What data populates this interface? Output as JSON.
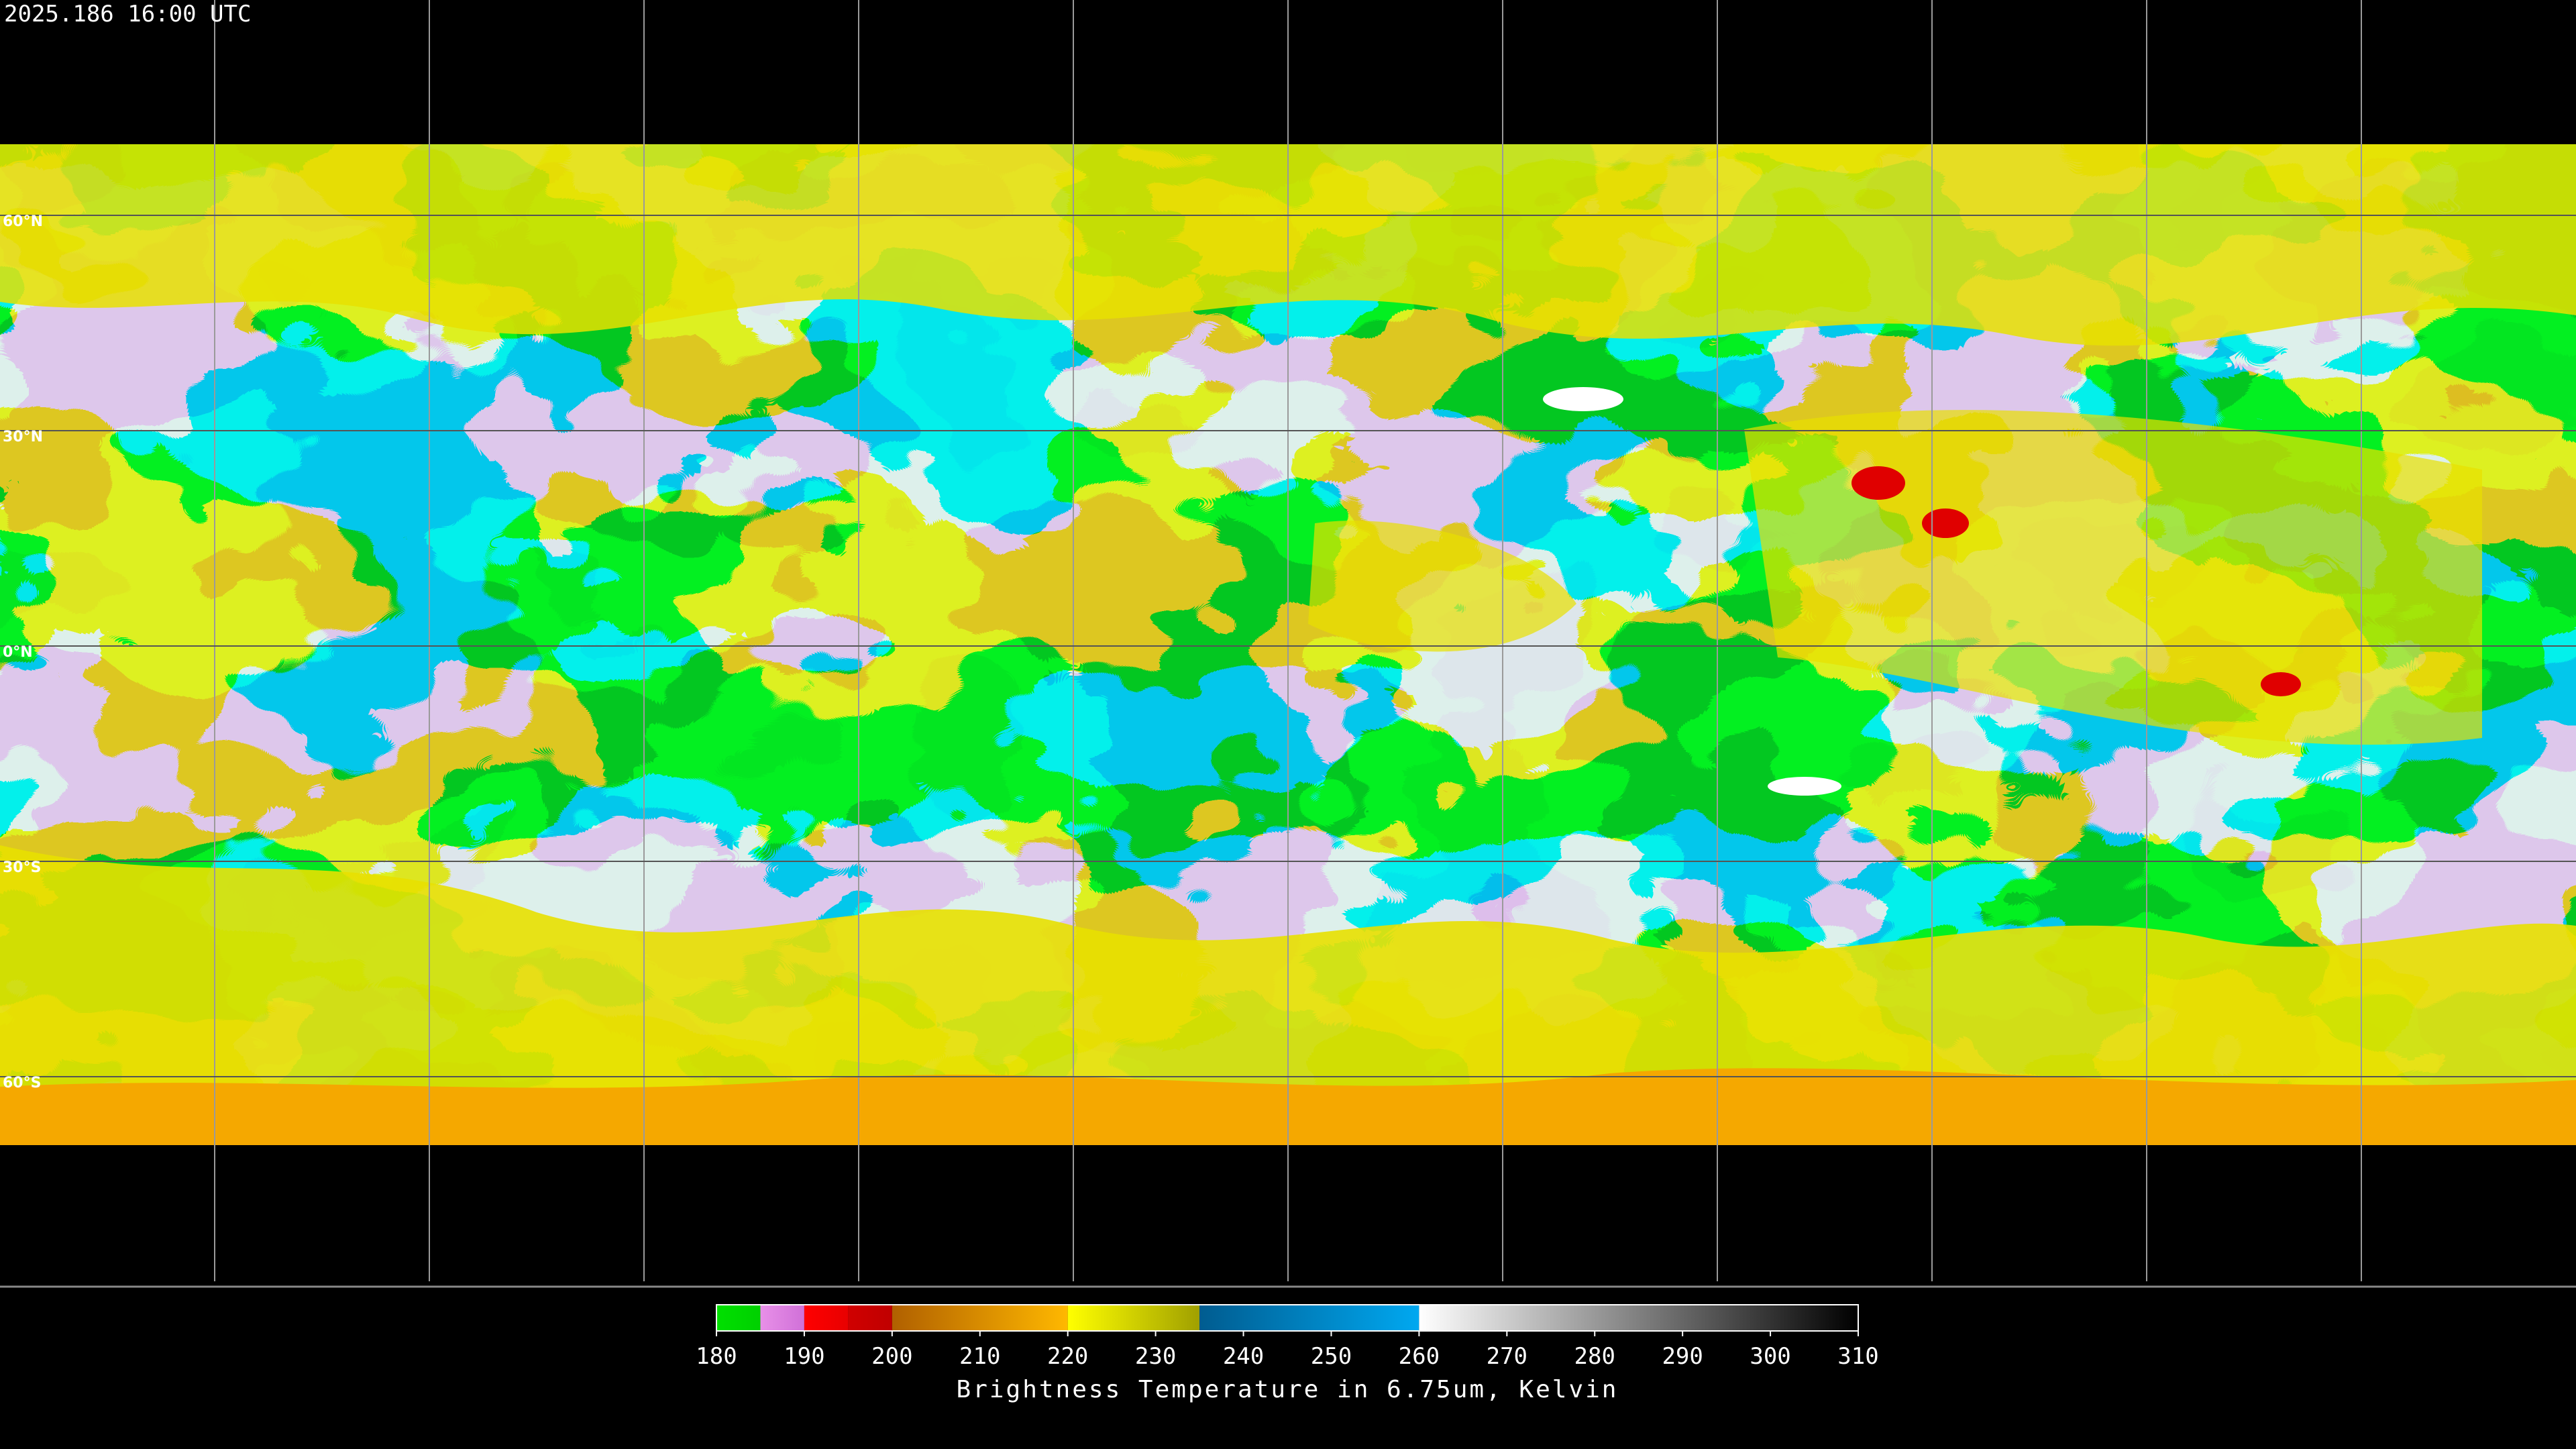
{
  "timestamp": "2025.186 16:00 UTC",
  "lat_labels": [
    "60°N",
    "30°N",
    "0°N",
    "30°S",
    "60°S"
  ],
  "colorbar": {
    "label": "Brightness Temperature in 6.75um, Kelvin",
    "range": [
      180,
      310
    ],
    "ticks": [
      180,
      190,
      200,
      210,
      220,
      230,
      240,
      250,
      260,
      270,
      280,
      290,
      300,
      310
    ],
    "segments": [
      {
        "from": 180,
        "to": 185,
        "colors": [
          "#00e000",
          "#00d000"
        ]
      },
      {
        "from": 185,
        "to": 190,
        "colors": [
          "#e890e8",
          "#d070d8"
        ]
      },
      {
        "from": 190,
        "to": 195,
        "colors": [
          "#ff0000",
          "#e80000"
        ]
      },
      {
        "from": 195,
        "to": 200,
        "colors": [
          "#d00000",
          "#c00000"
        ]
      },
      {
        "from": 200,
        "to": 220,
        "colors": [
          "#b06000",
          "#ffb800"
        ]
      },
      {
        "from": 220,
        "to": 235,
        "colors": [
          "#ffff00",
          "#a0a000"
        ]
      },
      {
        "from": 235,
        "to": 260,
        "colors": [
          "#005c90",
          "#00a8f0"
        ]
      },
      {
        "from": 260,
        "to": 310,
        "colors": [
          "#ffffff",
          "#000000"
        ]
      }
    ]
  }
}
